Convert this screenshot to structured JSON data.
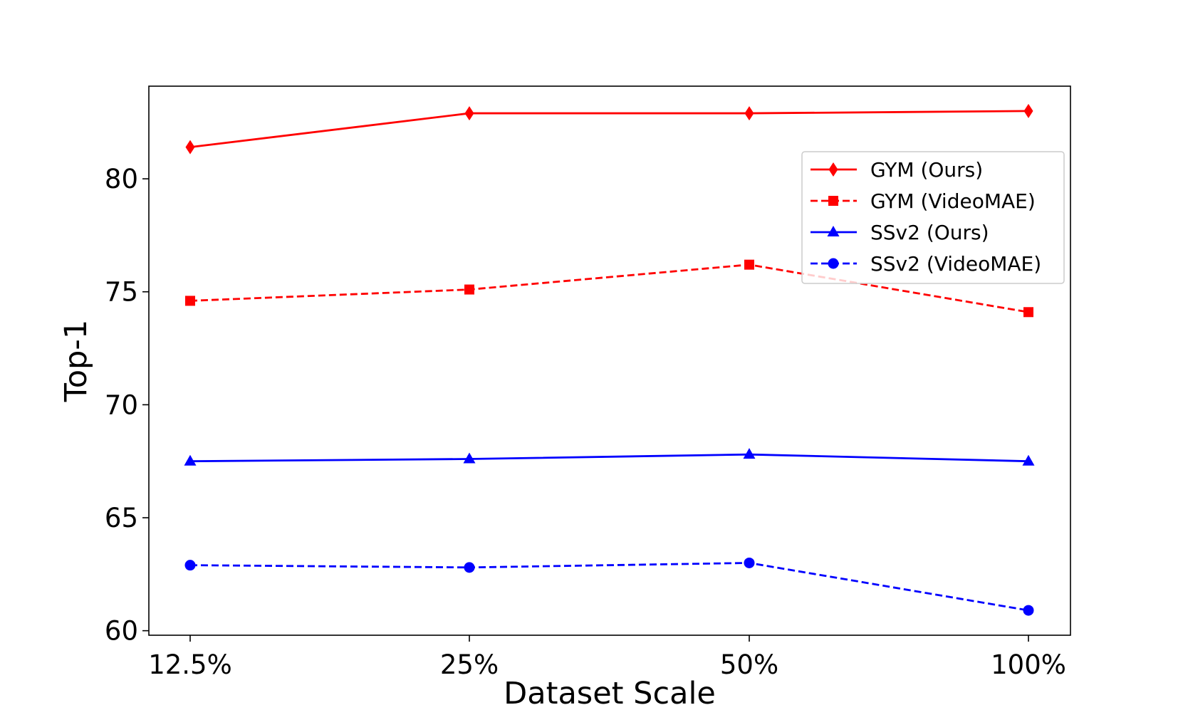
{
  "chart_data": {
    "type": "line",
    "title": "",
    "xlabel": "Dataset Scale",
    "ylabel": "Top-1",
    "categories": [
      "12.5%",
      "25%",
      "50%",
      "100%"
    ],
    "ylim": [
      59.8,
      84.1
    ],
    "yticks": [
      60,
      65,
      70,
      75,
      80
    ],
    "grid": false,
    "legend_position": "upper-right",
    "series": [
      {
        "name": "GYM (Ours)",
        "values": [
          81.4,
          82.9,
          82.9,
          83.0
        ],
        "color": "#ff0000",
        "linestyle": "solid",
        "marker": "diamond"
      },
      {
        "name": "GYM (VideoMAE)",
        "values": [
          74.6,
          75.1,
          76.2,
          74.1
        ],
        "color": "#ff0000",
        "linestyle": "dashed",
        "marker": "square"
      },
      {
        "name": "SSv2 (Ours)",
        "values": [
          67.5,
          67.6,
          67.8,
          67.5
        ],
        "color": "#0000ff",
        "linestyle": "solid",
        "marker": "triangle"
      },
      {
        "name": "SSv2 (VideoMAE)",
        "values": [
          62.9,
          62.8,
          63.0,
          60.9
        ],
        "color": "#0000ff",
        "linestyle": "dashed",
        "marker": "circle"
      }
    ]
  }
}
